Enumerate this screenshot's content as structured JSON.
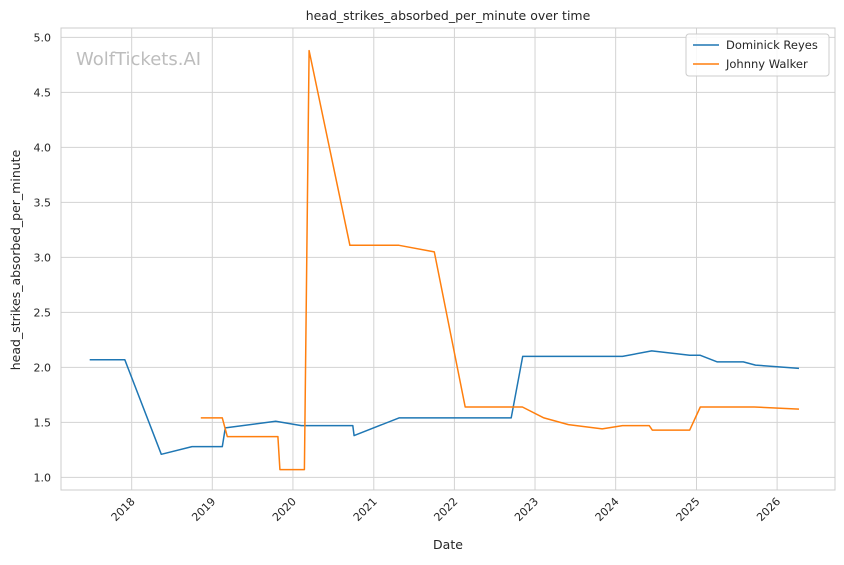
{
  "watermark": "WolfTickets.AI",
  "colors": {
    "background": "#ffffff",
    "grid": "#d3d3d3",
    "axis_frame": "#cccccc",
    "text": "#262626",
    "watermark": "#bdbdbd",
    "series": [
      "#1f77b4",
      "#ff7f0e"
    ]
  },
  "chart_data": {
    "type": "line",
    "title": "head_strikes_absorbed_per_minute over time",
    "xlabel": "Date",
    "ylabel": "head_strikes_absorbed_per_minute",
    "x_ticks": [
      "2018",
      "2019",
      "2020",
      "2021",
      "2022",
      "2023",
      "2024",
      "2025",
      "2026"
    ],
    "y_ticks": [
      "1.0",
      "1.5",
      "2.0",
      "2.5",
      "3.0",
      "3.5",
      "4.0",
      "4.5",
      "5.0"
    ],
    "xlim": [
      "2017-02-15",
      "2026-09-20"
    ],
    "ylim": [
      0.885,
      5.085
    ],
    "grid": true,
    "legend_position": "top-right",
    "series": [
      {
        "name": "Dominick Reyes",
        "x": [
          "2017-06-25",
          "2017-12-01",
          "2018-05-15",
          "2018-10-01",
          "2019-02-15",
          "2019-03-01",
          "2019-10-15",
          "2020-02-08",
          "2020-09-28",
          "2020-10-04",
          "2021-04-25",
          "2022-09-15",
          "2022-11-06",
          "2024-02-01",
          "2024-06-12",
          "2024-12-01",
          "2025-01-18",
          "2025-04-05",
          "2025-08-01",
          "2025-09-25",
          "2026-04-10"
        ],
        "y": [
          2.07,
          2.07,
          1.21,
          1.28,
          1.28,
          1.45,
          1.51,
          1.47,
          1.47,
          1.38,
          1.54,
          1.54,
          2.1,
          2.1,
          2.15,
          2.11,
          2.11,
          2.05,
          2.05,
          2.02,
          1.99
        ]
      },
      {
        "name": "Johnny Walker",
        "x": [
          "2018-11-10",
          "2019-02-15",
          "2019-03-10",
          "2019-10-25",
          "2019-11-03",
          "2020-02-22",
          "2020-03-14",
          "2020-09-15",
          "2021-04-25",
          "2021-10-02",
          "2022-02-19",
          "2022-11-05",
          "2023-02-10",
          "2023-06-01",
          "2023-11-01",
          "2024-02-01",
          "2024-06-01",
          "2024-06-15",
          "2024-12-01",
          "2025-01-18",
          "2025-09-20",
          "2026-04-10"
        ],
        "y": [
          1.54,
          1.54,
          1.37,
          1.37,
          1.07,
          1.07,
          4.88,
          3.11,
          3.11,
          3.05,
          1.64,
          1.64,
          1.54,
          1.48,
          1.44,
          1.47,
          1.47,
          1.43,
          1.43,
          1.64,
          1.64,
          1.62
        ]
      }
    ]
  }
}
